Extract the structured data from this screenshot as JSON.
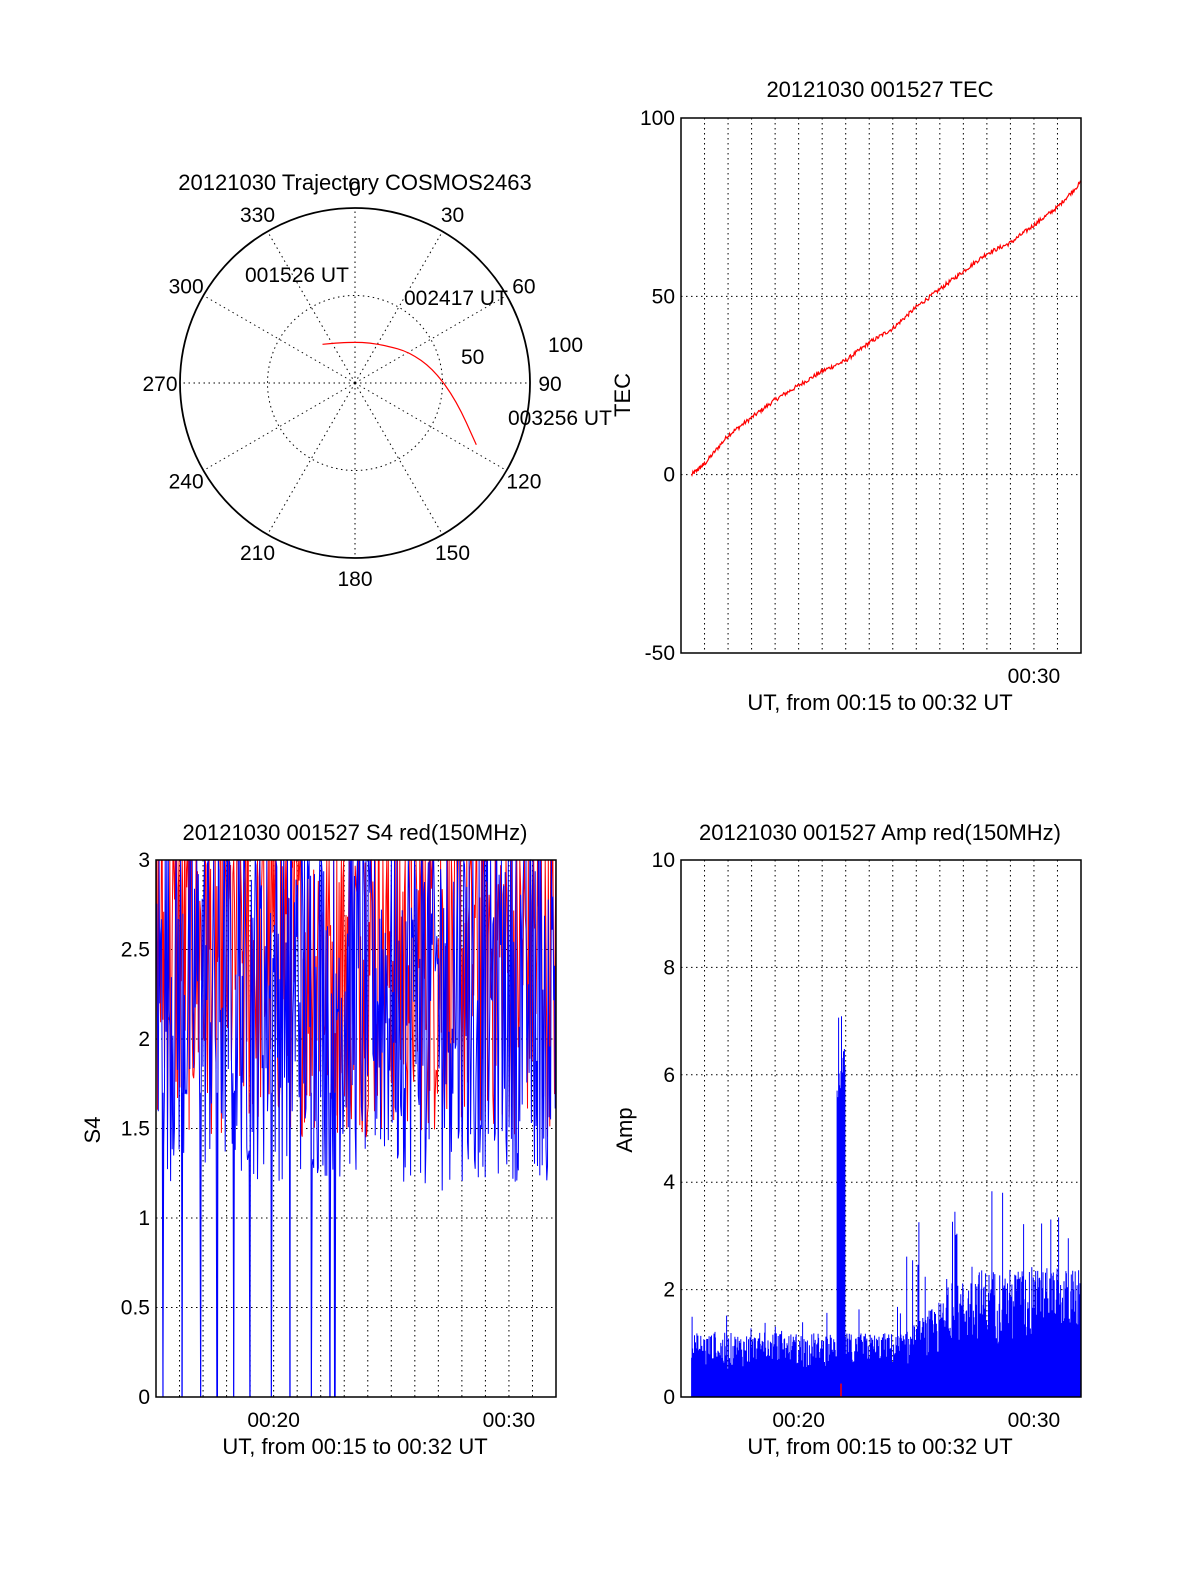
{
  "colors": {
    "red": "#ff0000",
    "blue": "#0000ff",
    "axis": "#000000"
  },
  "chart_data": [
    {
      "type": "polar",
      "id": "trajectory",
      "title": "20121030 Trajectory COSMOS2463",
      "azimuth_labels": [
        "0",
        "30",
        "60",
        "90",
        "120",
        "150",
        "180",
        "210",
        "240",
        "270",
        "300",
        "330"
      ],
      "elevation_labels": [
        "100",
        "50"
      ],
      "track": {
        "start_label": "001526 UT",
        "mid_label": "002417 UT",
        "end_label": "003256 UT",
        "points": [
          [
            -40,
            64
          ],
          [
            -20,
            68
          ],
          [
            0,
            69
          ],
          [
            20,
            68
          ],
          [
            40,
            65
          ],
          [
            60,
            58
          ],
          [
            80,
            49
          ],
          [
            100,
            37
          ],
          [
            117,
            20
          ]
        ]
      }
    },
    {
      "type": "line",
      "id": "tec",
      "title": "20121030 001527 TEC",
      "xlabel": "UT, from 00:15 to 00:32 UT",
      "ylabel": "TEC",
      "xlim": [
        15.0,
        32.0
      ],
      "ylim": [
        -50,
        100
      ],
      "yticks": [
        "100",
        "50",
        "0",
        "-50"
      ],
      "xticks": [
        "00:30"
      ],
      "series": [
        {
          "color": "red",
          "x": [
            15.45,
            16,
            17,
            18,
            19,
            20,
            21,
            22,
            23,
            24,
            25,
            26,
            27,
            28,
            29,
            30,
            31,
            32
          ],
          "values": [
            0,
            3,
            11,
            16,
            21,
            25,
            29,
            32,
            37,
            41,
            47,
            52,
            57,
            62,
            65,
            70,
            75,
            82
          ]
        }
      ]
    },
    {
      "type": "line",
      "id": "s4",
      "title": "20121030 001527 S4 red(150MHz)",
      "xlabel": "UT, from 00:15 to 00:32 UT",
      "ylabel": "S4",
      "xlim": [
        15.0,
        32.0
      ],
      "ylim": [
        0,
        3
      ],
      "yticks": [
        "3",
        "2.5",
        "2",
        "1.5",
        "1",
        "0.5",
        "0"
      ],
      "xticks": [
        "00:20",
        "00:30"
      ],
      "series": [
        {
          "color": "red",
          "band": [
            1.5,
            3.0
          ]
        },
        {
          "color": "blue",
          "band": [
            1.3,
            3.0
          ],
          "dropouts_to_zero": [
            15.3,
            16.1,
            16.9,
            17.6,
            18.3,
            19.0,
            19.9,
            20.7,
            21.6,
            22.4,
            22.6
          ]
        }
      ]
    },
    {
      "type": "line",
      "id": "amp",
      "title": "20121030 001527 Amp red(150MHz)",
      "xlabel": "UT, from 00:15 to 00:32 UT",
      "ylabel": "Amp",
      "xlim": [
        15.0,
        32.0
      ],
      "ylim": [
        0,
        10
      ],
      "yticks": [
        "10",
        "8",
        "6",
        "4",
        "2",
        "0"
      ],
      "xticks": [
        "00:20",
        "00:30"
      ],
      "series": [
        {
          "color": "blue",
          "baseline": 0.8,
          "spike_at": 21.8,
          "spike_peak": 7.1,
          "late_level": 1.6,
          "late_peak": 4.0
        }
      ]
    }
  ]
}
